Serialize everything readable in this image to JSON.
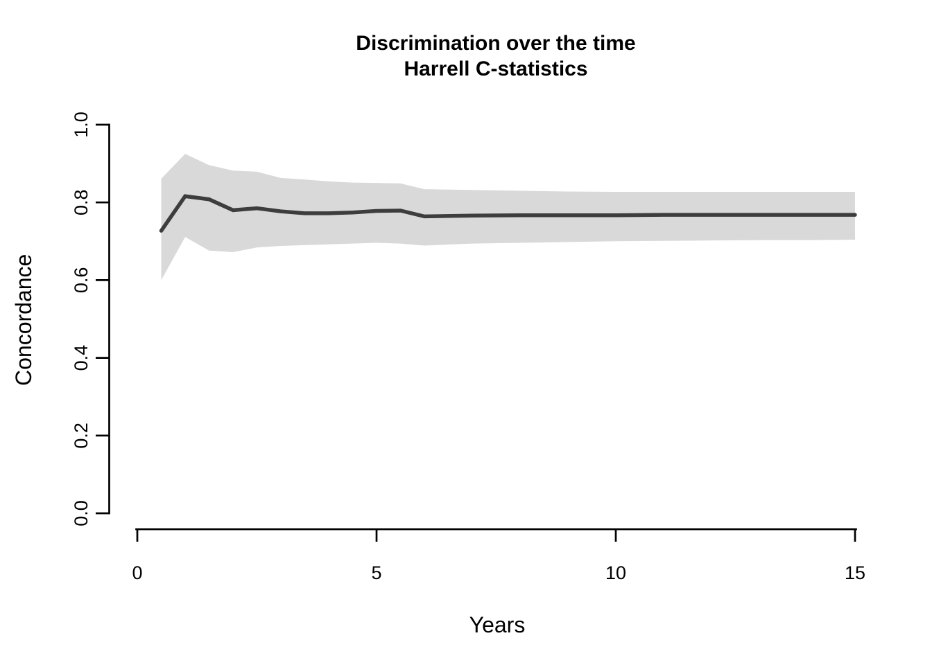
{
  "figure": {
    "background": "#ffffff"
  },
  "chart_data": {
    "type": "line",
    "title": "Discrimination over the time\nHarrell C-statistics",
    "title_lines": [
      "Discrimination over the time",
      "Harrell C-statistics"
    ],
    "xlabel": "Years",
    "ylabel": "Concordance",
    "xlim": [
      0,
      15
    ],
    "ylim": [
      0.0,
      1.0
    ],
    "x_tick_values": [
      0,
      5,
      10,
      15
    ],
    "x_tick_labels": [
      "0",
      "5",
      "10",
      "15"
    ],
    "y_tick_values": [
      0.0,
      0.2,
      0.4,
      0.6,
      0.8,
      1.0
    ],
    "y_tick_labels": [
      "0.0",
      "0.2",
      "0.4",
      "0.6",
      "0.8",
      "1.0"
    ],
    "grid": false,
    "legend": "none",
    "x": [
      0.5,
      1,
      1.5,
      2,
      2.5,
      3,
      3.5,
      4,
      4.5,
      5,
      5.5,
      6,
      7,
      8,
      9,
      10,
      11,
      12,
      13,
      14,
      15
    ],
    "series": [
      {
        "name": "estimate",
        "role": "line",
        "values": [
          0.727,
          0.816,
          0.808,
          0.78,
          0.785,
          0.777,
          0.772,
          0.772,
          0.774,
          0.778,
          0.779,
          0.764,
          0.766,
          0.767,
          0.767,
          0.767,
          0.768,
          0.768,
          0.768,
          0.768,
          0.768
        ]
      },
      {
        "name": "band_lower",
        "role": "band-lower",
        "values": [
          0.6,
          0.711,
          0.676,
          0.672,
          0.684,
          0.688,
          0.69,
          0.692,
          0.694,
          0.696,
          0.694,
          0.689,
          0.694,
          0.696,
          0.698,
          0.7,
          0.701,
          0.702,
          0.703,
          0.703,
          0.704
        ]
      },
      {
        "name": "band_upper",
        "role": "band-upper",
        "values": [
          0.861,
          0.925,
          0.896,
          0.882,
          0.879,
          0.863,
          0.859,
          0.854,
          0.851,
          0.85,
          0.849,
          0.834,
          0.832,
          0.83,
          0.828,
          0.827,
          0.827,
          0.827,
          0.827,
          0.827,
          0.827
        ]
      }
    ],
    "colors": {
      "band": "#d9d9d9",
      "line": "#3d3d3d",
      "axis": "#000000",
      "text": "#000000"
    }
  }
}
